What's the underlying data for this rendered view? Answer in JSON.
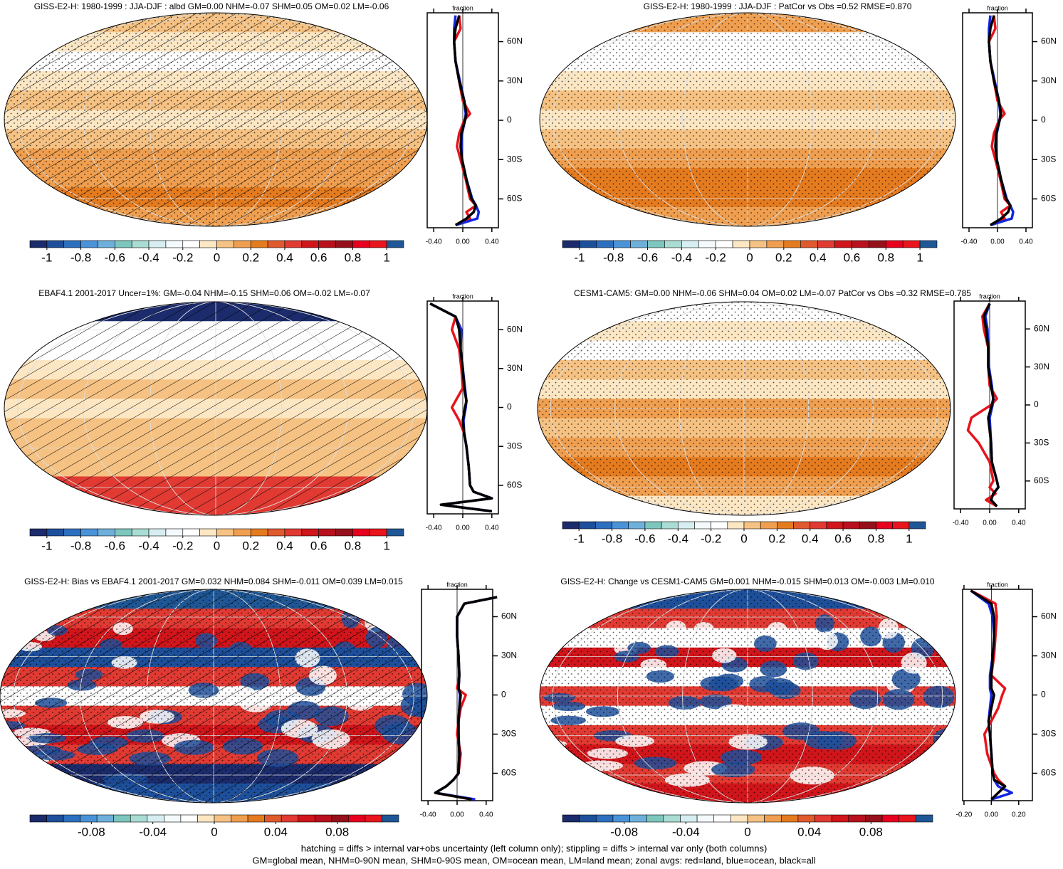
{
  "colorbar_colors": [
    "#1b2b6b",
    "#1d4f9a",
    "#2d6fbf",
    "#4b93d8",
    "#6fb0db",
    "#7cc6bd",
    "#a9dcd3",
    "#d6eef1",
    "#f4fafb",
    "#ffffff",
    "#fde7c3",
    "#f6c283",
    "#ef9f4f",
    "#e57b1f",
    "#e05a2e",
    "#e03a33",
    "#d0151b",
    "#b8101d",
    "#95101a",
    "#e8001f",
    "#e8151c",
    "#1f5796"
  ],
  "panels": [
    {
      "title": "GISS-E2-H: 1980-1999 : JJA-DJF : albd GM=0.00 NHM=-0.07 SHM=0.05 OM=0.02 LM=-0.06",
      "hatching": true,
      "stippling": true,
      "colorbar": {
        "lim": [
          -1.1,
          1.1
        ],
        "ticks": [
          -1,
          -0.8,
          -0.6,
          -0.4,
          -0.2,
          0,
          0.2,
          0.4,
          0.6,
          0.8,
          1
        ]
      },
      "profile": {
        "xlabel": "fraction",
        "xlim": [
          -0.49,
          0.49
        ],
        "ylim": [
          -82,
          82
        ],
        "xticks": [
          {
            "value": -0.4,
            "label": "-0.40"
          },
          {
            "value": 0,
            "label": "0.00"
          },
          {
            "value": 0.4,
            "label": "0.40"
          }
        ],
        "yticks": [
          {
            "value": 60,
            "label": "60N"
          },
          {
            "value": 30,
            "label": "30N"
          },
          0,
          {
            "value": -30,
            "label": "30S"
          },
          {
            "value": -60,
            "label": "60S"
          }
        ],
        "lat": [
          80,
          70,
          60,
          45,
          30,
          15,
          5,
          0,
          -10,
          -20,
          -30,
          -45,
          -60,
          -65,
          -70,
          -75,
          -80
        ],
        "series": [
          {
            "color": "#e8121b",
            "values": [
              -0.05,
              -0.03,
              -0.12,
              -0.1,
              -0.05,
              0.0,
              0.1,
              0.02,
              -0.05,
              -0.08,
              -0.03,
              0.04,
              0.1,
              0.18,
              0.05,
              0.1,
              -0.1
            ]
          },
          {
            "color": "#1226e0",
            "values": [
              -0.1,
              -0.12,
              -0.12,
              -0.1,
              -0.04,
              0.02,
              0.04,
              0.03,
              -0.01,
              -0.02,
              -0.01,
              0.05,
              0.13,
              0.18,
              0.22,
              0.2,
              -0.1
            ]
          },
          {
            "color": "#000000",
            "values": [
              -0.05,
              -0.1,
              -0.12,
              -0.1,
              -0.05,
              0.02,
              0.05,
              0.03,
              -0.02,
              -0.03,
              -0.01,
              0.05,
              0.12,
              0.18,
              0.15,
              0.05,
              -0.1
            ]
          }
        ]
      }
    },
    {
      "title": "GISS-E2-H: 1980-1999 : JJA-DJF : PatCor vs Obs =0.52 RMSE=0.870",
      "hatching": false,
      "stippling": true,
      "colorbar": {
        "lim": [
          -1.1,
          1.1
        ],
        "ticks": [
          -1,
          -0.8,
          -0.6,
          -0.4,
          -0.2,
          0,
          0.2,
          0.4,
          0.6,
          0.8,
          1
        ]
      },
      "profile": {
        "xlabel": "fraction",
        "xlim": [
          -0.49,
          0.49
        ],
        "ylim": [
          -82,
          82
        ],
        "xticks": [
          {
            "value": -0.4,
            "label": "-0.40"
          },
          {
            "value": 0,
            "label": "0.00"
          },
          {
            "value": 0.4,
            "label": "0.40"
          }
        ],
        "yticks": [
          {
            "value": 60,
            "label": "60N"
          },
          {
            "value": 30,
            "label": "30N"
          },
          0,
          {
            "value": -30,
            "label": "30S"
          },
          {
            "value": -60,
            "label": "60S"
          }
        ],
        "lat": [
          80,
          70,
          60,
          45,
          30,
          15,
          5,
          0,
          -10,
          -20,
          -30,
          -45,
          -60,
          -65,
          -70,
          -75,
          -80
        ],
        "series": [
          {
            "color": "#e8121b",
            "values": [
              -0.05,
              -0.03,
              -0.12,
              -0.1,
              -0.05,
              0.0,
              0.1,
              0.02,
              -0.05,
              -0.08,
              -0.03,
              0.04,
              0.1,
              0.18,
              0.05,
              0.1,
              -0.1
            ]
          },
          {
            "color": "#1226e0",
            "values": [
              -0.1,
              -0.12,
              -0.12,
              -0.1,
              -0.04,
              0.02,
              0.04,
              0.03,
              -0.01,
              -0.02,
              -0.01,
              0.05,
              0.13,
              0.18,
              0.22,
              0.2,
              -0.1
            ]
          },
          {
            "color": "#000000",
            "values": [
              -0.05,
              -0.1,
              -0.12,
              -0.1,
              -0.05,
              0.02,
              0.05,
              0.03,
              -0.02,
              -0.03,
              -0.01,
              0.05,
              0.12,
              0.18,
              0.15,
              0.05,
              -0.1
            ]
          }
        ]
      }
    },
    {
      "title": "EBAF4.1 2001-2017 Uncer=1%: GM=-0.04 NHM=-0.15 SHM=0.06 OM=-0.02 LM=-0.07",
      "hatching": true,
      "stippling": false,
      "colorbar": {
        "lim": [
          -1.1,
          1.1
        ],
        "ticks": [
          -1,
          -0.8,
          -0.6,
          -0.4,
          -0.2,
          0,
          0.2,
          0.4,
          0.6,
          0.8,
          1
        ]
      },
      "profile": {
        "xlabel": "fraction",
        "xlim": [
          -0.49,
          0.49
        ],
        "ylim": [
          -82,
          82
        ],
        "xticks": [
          {
            "value": -0.4,
            "label": "-0.40"
          },
          {
            "value": 0,
            "label": "0.00"
          },
          {
            "value": 0.4,
            "label": "0.40"
          }
        ],
        "yticks": [
          {
            "value": 60,
            "label": "60N"
          },
          {
            "value": 30,
            "label": "30N"
          },
          0,
          {
            "value": -30,
            "label": "30S"
          },
          {
            "value": -60,
            "label": "60S"
          }
        ],
        "lat": [
          80,
          70,
          60,
          45,
          30,
          15,
          5,
          0,
          -10,
          -20,
          -30,
          -45,
          -60,
          -65,
          -70,
          -75,
          -80
        ],
        "series": [
          {
            "color": "#e8121b",
            "values": [
              -0.45,
              -0.1,
              -0.15,
              -0.05,
              -0.02,
              0.0,
              -0.1,
              -0.15,
              -0.05,
              0.02,
              0.05,
              0.08,
              0.1,
              0.15,
              0.4,
              -0.3,
              0.4
            ]
          },
          {
            "color": "#1226e0",
            "values": [
              -0.45,
              -0.1,
              -0.02,
              -0.03,
              0.0,
              0.03,
              0.05,
              0.04,
              0.01,
              0.02,
              0.05,
              0.08,
              0.1,
              0.15,
              0.4,
              -0.3,
              0.4
            ]
          },
          {
            "color": "#000000",
            "values": [
              -0.45,
              -0.1,
              -0.05,
              -0.03,
              0.0,
              0.02,
              0.05,
              0.03,
              0.0,
              0.02,
              0.05,
              0.08,
              0.1,
              0.15,
              0.4,
              -0.3,
              0.4
            ]
          }
        ]
      }
    },
    {
      "title": "CESM1-CAM5: GM=0.00 NHM=-0.06 SHM=0.04 OM=0.02 LM=-0.07 PatCor vs Obs =0.32 RMSE=0.785",
      "hatching": false,
      "stippling": true,
      "colorbar": {
        "lim": [
          -1.1,
          1.1
        ],
        "ticks": [
          -1,
          -0.8,
          -0.6,
          -0.4,
          -0.2,
          0,
          0.2,
          0.4,
          0.6,
          0.8,
          1
        ]
      },
      "profile": {
        "xlabel": "fraction",
        "xlim": [
          -0.49,
          0.49
        ],
        "ylim": [
          -82,
          82
        ],
        "xticks": [
          {
            "value": -0.4,
            "label": "-0.40"
          },
          {
            "value": 0,
            "label": "0.00"
          },
          {
            "value": 0.4,
            "label": "0.40"
          }
        ],
        "yticks": [
          {
            "value": 60,
            "label": "60N"
          },
          {
            "value": 30,
            "label": "30N"
          },
          0,
          {
            "value": -30,
            "label": "30S"
          },
          {
            "value": -60,
            "label": "60S"
          }
        ],
        "lat": [
          80,
          70,
          60,
          45,
          30,
          15,
          5,
          0,
          -10,
          -20,
          -30,
          -45,
          -60,
          -65,
          -70,
          -75,
          -80
        ],
        "series": [
          {
            "color": "#e8121b",
            "values": [
              0.0,
              -0.1,
              -0.08,
              -0.02,
              -0.02,
              0.0,
              0.1,
              0.02,
              -0.25,
              -0.3,
              -0.15,
              0.0,
              0.05,
              0.0,
              0.08,
              -0.05,
              0.1
            ]
          },
          {
            "color": "#1226e0",
            "values": [
              0.0,
              -0.06,
              -0.03,
              -0.02,
              -0.01,
              0.03,
              0.05,
              0.04,
              0.0,
              0.01,
              0.02,
              0.03,
              0.1,
              0.12,
              0.05,
              0.02,
              0.1
            ]
          },
          {
            "color": "#000000",
            "values": [
              0.0,
              -0.08,
              -0.05,
              -0.02,
              -0.02,
              0.02,
              0.05,
              0.03,
              -0.02,
              0.0,
              0.02,
              0.03,
              0.1,
              0.12,
              0.05,
              0.02,
              0.1
            ]
          }
        ]
      }
    },
    {
      "title": "GISS-E2-H: Bias vs EBAF4.1 2001-2017 GM=0.032 NHM=0.084 SHM=-0.011 OM=0.039 LM=0.015",
      "hatching": true,
      "stippling": true,
      "colorbar": {
        "lim": [
          -0.12,
          0.12
        ],
        "ticks": [
          -0.08,
          -0.04,
          0,
          0.04,
          0.08
        ]
      },
      "profile": {
        "xlabel": "fraction",
        "xlim": [
          -0.49,
          0.49
        ],
        "ylim": [
          -81,
          81
        ],
        "xticks": [
          {
            "value": -0.4,
            "label": "-0.40"
          },
          {
            "value": 0,
            "label": "0.00"
          },
          {
            "value": 0.4,
            "label": "0.40"
          }
        ],
        "yticks": [
          {
            "value": 60,
            "label": "60N"
          },
          {
            "value": 30,
            "label": "30N"
          },
          0,
          {
            "value": -30,
            "label": "30S"
          },
          {
            "value": -60,
            "label": "60S"
          }
        ],
        "lat": [
          75,
          70,
          60,
          45,
          30,
          15,
          5,
          0,
          -10,
          -20,
          -30,
          -45,
          -60,
          -65,
          -70,
          -75,
          -80
        ],
        "series": [
          {
            "color": "#e8121b",
            "values": [
              0.55,
              0.1,
              0.0,
              0.0,
              0.02,
              0.03,
              0.0,
              0.12,
              0.05,
              0.02,
              0.0,
              0.05,
              0.02,
              -0.05,
              -0.15,
              -0.3,
              0.2
            ]
          },
          {
            "color": "#1226e0",
            "values": [
              0.55,
              0.1,
              0.0,
              0.0,
              0.02,
              0.03,
              0.02,
              0.04,
              0.03,
              0.02,
              0.02,
              0.03,
              0.02,
              -0.05,
              -0.15,
              -0.3,
              0.25
            ]
          },
          {
            "color": "#000000",
            "values": [
              0.55,
              0.1,
              0.0,
              0.0,
              0.02,
              0.03,
              0.02,
              0.05,
              0.03,
              0.02,
              0.02,
              0.03,
              0.02,
              -0.05,
              -0.15,
              -0.3,
              0.2
            ]
          }
        ]
      }
    },
    {
      "title": "GISS-E2-H: Change vs CESM1-CAM5 GM=0.001 NHM=-0.015 SHM=0.013 OM=-0.003 LM=0.010",
      "hatching": false,
      "stippling": true,
      "colorbar": {
        "lim": [
          -0.12,
          0.12
        ],
        "ticks": [
          -0.08,
          -0.04,
          0,
          0.04,
          0.08
        ]
      },
      "profile": {
        "xlabel": "fraction",
        "xlim": [
          -0.21,
          0.3
        ],
        "ylim": [
          -81,
          81
        ],
        "xticks": [
          {
            "value": -0.2,
            "label": "-0.20"
          },
          {
            "value": 0,
            "label": "0.00"
          },
          {
            "value": 0.2,
            "label": "0.20"
          }
        ],
        "yticks": [
          {
            "value": 60,
            "label": "60N"
          },
          {
            "value": 30,
            "label": "30N"
          },
          0,
          {
            "value": -30,
            "label": "30S"
          },
          {
            "value": -60,
            "label": "60S"
          }
        ],
        "lat": [
          80,
          70,
          60,
          45,
          30,
          15,
          5,
          0,
          -10,
          -20,
          -30,
          -45,
          -60,
          -65,
          -70,
          -75,
          -80
        ],
        "series": [
          {
            "color": "#e8121b",
            "values": [
              -0.15,
              0.03,
              0.04,
              0.03,
              0.02,
              0.0,
              0.1,
              0.08,
              0.05,
              0.0,
              -0.05,
              -0.03,
              0.02,
              0.05,
              0.1,
              0.05,
              0.0
            ]
          },
          {
            "color": "#1226e0",
            "values": [
              -0.15,
              -0.02,
              0.01,
              0.02,
              0.01,
              -0.01,
              -0.01,
              0.0,
              -0.01,
              -0.02,
              -0.01,
              0.0,
              0.01,
              0.02,
              0.05,
              0.15,
              0.0
            ]
          },
          {
            "color": "#000000",
            "values": [
              -0.15,
              0.0,
              0.02,
              0.02,
              0.01,
              0.0,
              0.0,
              0.02,
              0.0,
              -0.02,
              -0.01,
              0.0,
              0.01,
              0.02,
              0.1,
              0.05,
              0.0
            ]
          }
        ]
      }
    }
  ],
  "footer": [
    "hatching = diffs > internal var+obs uncertainty (left column only); stippling = diffs > internal var only (both columns)",
    "GM=global mean, NHM=0-90N mean, SHM=0-90S mean, OM=ocean mean, LM=land mean; zonal avgs: red=land, blue=ocean, black=all"
  ]
}
